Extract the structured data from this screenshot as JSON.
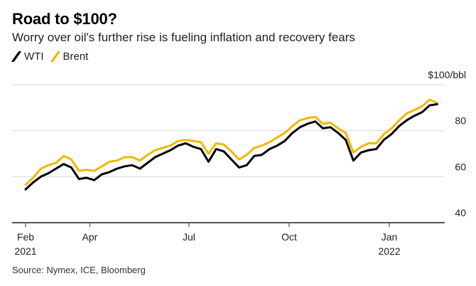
{
  "header": {
    "title": "Road to $100?",
    "subtitle": "Worry over oil's further rise is fueling inflation and recovery fears"
  },
  "legend": [
    {
      "name": "WTI",
      "color": "#000000"
    },
    {
      "name": "Brent",
      "color": "#f2b705"
    }
  ],
  "source": "Source: Nymex, ICE, Bloomberg",
  "chart_data": {
    "type": "line",
    "title": "Road to $100?",
    "subtitle": "Worry over oil's further rise is fueling inflation and recovery fears",
    "xlabel": "",
    "ylabel": "$100/bbl",
    "unit": "$/bbl",
    "ylim": [
      40,
      100
    ],
    "yticks": [
      {
        "value": 100,
        "label": "$100/bbl"
      },
      {
        "value": 80,
        "label": "80"
      },
      {
        "value": 60,
        "label": "60"
      },
      {
        "value": 40,
        "label": "40"
      }
    ],
    "xlim": [
      "2021-01-15",
      "2022-02-28"
    ],
    "xticks": [
      {
        "date": "2021-02-01",
        "label": "Feb",
        "sublabel": "2021"
      },
      {
        "date": "2021-04-01",
        "label": "Apr",
        "sublabel": ""
      },
      {
        "date": "2021-07-01",
        "label": "Jul",
        "sublabel": ""
      },
      {
        "date": "2021-10-01",
        "label": "Oct",
        "sublabel": ""
      },
      {
        "date": "2022-01-01",
        "label": "Jan",
        "sublabel": "2022"
      }
    ],
    "grid": true,
    "legend_position": "top-left",
    "x": [
      "2021-02-01",
      "2021-02-08",
      "2021-02-15",
      "2021-02-22",
      "2021-03-01",
      "2021-03-08",
      "2021-03-15",
      "2021-03-22",
      "2021-03-29",
      "2021-04-05",
      "2021-04-12",
      "2021-04-19",
      "2021-04-26",
      "2021-05-03",
      "2021-05-10",
      "2021-05-17",
      "2021-05-24",
      "2021-05-31",
      "2021-06-07",
      "2021-06-14",
      "2021-06-21",
      "2021-06-28",
      "2021-07-05",
      "2021-07-12",
      "2021-07-19",
      "2021-07-26",
      "2021-08-02",
      "2021-08-09",
      "2021-08-16",
      "2021-08-23",
      "2021-08-30",
      "2021-09-06",
      "2021-09-13",
      "2021-09-20",
      "2021-09-27",
      "2021-10-04",
      "2021-10-11",
      "2021-10-18",
      "2021-10-25",
      "2021-11-01",
      "2021-11-08",
      "2021-11-15",
      "2021-11-22",
      "2021-11-29",
      "2021-12-06",
      "2021-12-13",
      "2021-12-20",
      "2021-12-27",
      "2022-01-03",
      "2022-01-10",
      "2022-01-17",
      "2022-01-24",
      "2022-01-31",
      "2022-02-07",
      "2022-02-14"
    ],
    "series": [
      {
        "name": "WTI",
        "color": "#000000",
        "values": [
          54.5,
          57.5,
          60.0,
          61.5,
          63.5,
          65.5,
          64.0,
          59.0,
          59.5,
          58.5,
          61.0,
          62.0,
          63.5,
          64.5,
          65.0,
          63.5,
          66.0,
          68.5,
          70.0,
          71.5,
          73.5,
          74.5,
          73.0,
          72.0,
          66.5,
          72.0,
          71.0,
          67.5,
          64.0,
          65.0,
          69.0,
          69.5,
          72.0,
          73.5,
          75.5,
          79.0,
          81.5,
          83.0,
          84.0,
          81.0,
          81.5,
          79.0,
          76.0,
          67.0,
          70.5,
          71.5,
          72.0,
          76.0,
          78.5,
          82.0,
          84.5,
          86.5,
          88.0,
          91.0,
          91.5
        ]
      },
      {
        "name": "Brent",
        "color": "#f2b705",
        "values": [
          56.5,
          59.5,
          63.5,
          65.0,
          66.0,
          69.0,
          67.5,
          62.5,
          63.0,
          62.5,
          64.5,
          66.5,
          67.0,
          68.5,
          68.5,
          67.0,
          69.5,
          71.5,
          72.5,
          73.5,
          75.5,
          76.0,
          75.5,
          75.0,
          70.0,
          74.5,
          74.0,
          71.0,
          67.5,
          69.5,
          72.5,
          73.5,
          75.0,
          77.0,
          79.0,
          82.0,
          84.5,
          85.5,
          86.0,
          83.0,
          83.5,
          81.0,
          79.0,
          70.5,
          73.0,
          74.5,
          74.5,
          78.5,
          81.0,
          84.5,
          87.5,
          89.0,
          90.5,
          93.5,
          92.0
        ]
      }
    ]
  }
}
